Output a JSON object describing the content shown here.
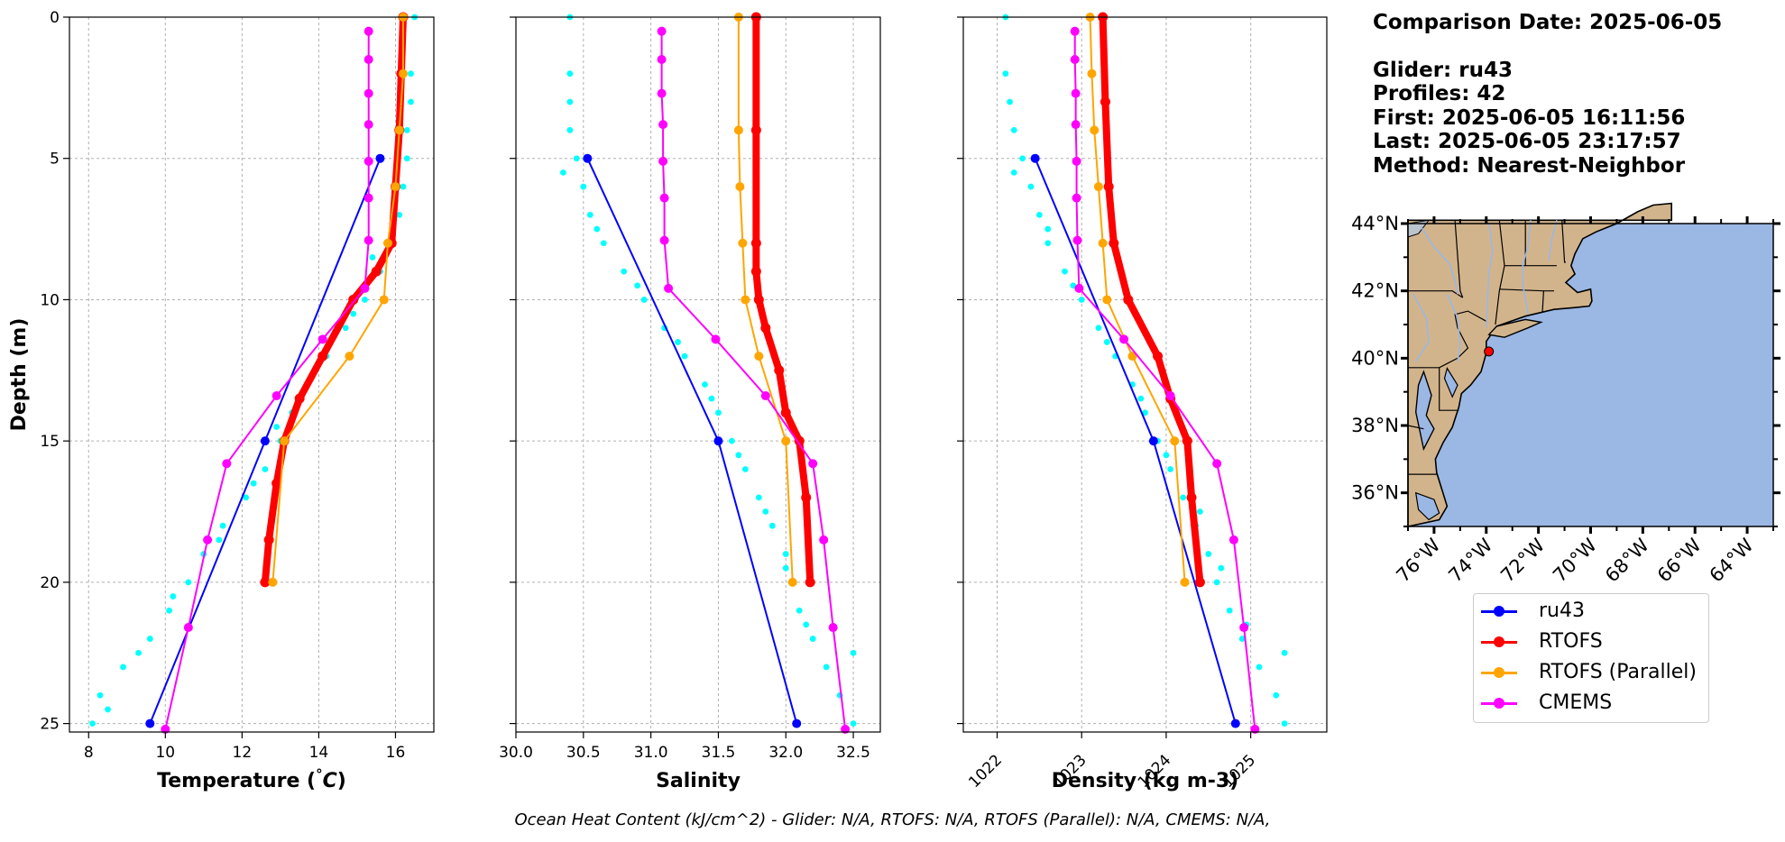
{
  "chart_data": [
    {
      "type": "line",
      "xlabel": "Temperature (°C)",
      "ylabel": "Depth (m)",
      "xlim": [
        7.5,
        17.0
      ],
      "ylim": [
        25.3,
        0
      ],
      "xticks": [
        8,
        10,
        12,
        14,
        16
      ],
      "yticks": [
        0,
        5,
        10,
        15,
        20,
        25
      ],
      "grid": true,
      "scatter": {
        "name": "",
        "color": "#00ffff",
        "points": [
          [
            16.5,
            0
          ],
          [
            16.4,
            2
          ],
          [
            16.4,
            3
          ],
          [
            16.3,
            4
          ],
          [
            16.3,
            5
          ],
          [
            16.2,
            6
          ],
          [
            16.1,
            7
          ],
          [
            15.9,
            8
          ],
          [
            15.6,
            9
          ],
          [
            15.2,
            10
          ],
          [
            14.7,
            11
          ],
          [
            14.2,
            12
          ],
          [
            13.7,
            13
          ],
          [
            13.3,
            14
          ],
          [
            13.0,
            15
          ],
          [
            12.6,
            16
          ],
          [
            12.1,
            17
          ],
          [
            11.5,
            18
          ],
          [
            11.0,
            19
          ],
          [
            10.6,
            20
          ],
          [
            10.1,
            21
          ],
          [
            9.6,
            22
          ],
          [
            8.9,
            23
          ],
          [
            8.3,
            24
          ],
          [
            8.1,
            25
          ],
          [
            16.0,
            6.5
          ],
          [
            15.4,
            8.5
          ],
          [
            14.9,
            10.5
          ],
          [
            13.9,
            12.5
          ],
          [
            12.9,
            14.5
          ],
          [
            12.3,
            16.5
          ],
          [
            11.4,
            18.5
          ],
          [
            10.2,
            20.5
          ],
          [
            9.3,
            22.5
          ],
          [
            8.5,
            24.5
          ]
        ]
      },
      "series": [
        {
          "name": "ru43",
          "color": "#0000ff",
          "x": [
            15.6,
            12.6,
            9.6
          ],
          "y": [
            5,
            15,
            25
          ]
        },
        {
          "name": "RTOFS",
          "color": "#ff0000",
          "x": [
            16.2,
            16.15,
            16.1,
            16.0,
            15.9,
            15.5,
            14.9,
            14.1,
            13.5,
            13.1,
            12.9,
            12.7,
            12.6
          ],
          "y": [
            0,
            2,
            4,
            6,
            8,
            9,
            10,
            12,
            13.5,
            15,
            16.5,
            18.5,
            20
          ]
        },
        {
          "name": "RTOFS (Parallel)",
          "color": "#ffa500",
          "x": [
            16.2,
            16.2,
            16.1,
            16.0,
            15.8,
            15.7,
            14.8,
            13.1,
            12.8
          ],
          "y": [
            0,
            2,
            4,
            6,
            8,
            10,
            12,
            15,
            20
          ]
        },
        {
          "name": "CMEMS",
          "color": "#ff00ff",
          "x": [
            15.3,
            15.3,
            15.3,
            15.3,
            15.3,
            15.3,
            15.3,
            15.2,
            14.1,
            12.9,
            11.6,
            11.1,
            10.6,
            10.0
          ],
          "y": [
            0.5,
            1.5,
            2.7,
            3.8,
            5.1,
            6.4,
            7.9,
            9.6,
            11.4,
            13.4,
            15.8,
            18.5,
            21.6,
            25.2
          ]
        }
      ]
    },
    {
      "type": "line",
      "xlabel": "Salinity",
      "ylabel": "",
      "xlim": [
        30.0,
        32.7
      ],
      "ylim": [
        25.3,
        0
      ],
      "xticks": [
        30.0,
        30.5,
        31.0,
        31.5,
        32.0,
        32.5
      ],
      "yticks": [
        0,
        5,
        10,
        15,
        20,
        25
      ],
      "grid": true,
      "scatter": {
        "name": "",
        "color": "#00ffff",
        "points": [
          [
            30.4,
            0
          ],
          [
            30.4,
            2
          ],
          [
            30.4,
            3
          ],
          [
            30.4,
            4
          ],
          [
            30.45,
            5
          ],
          [
            30.5,
            6
          ],
          [
            30.55,
            7
          ],
          [
            30.65,
            8
          ],
          [
            30.8,
            9
          ],
          [
            30.95,
            10
          ],
          [
            31.1,
            11
          ],
          [
            31.25,
            12
          ],
          [
            31.4,
            13
          ],
          [
            31.5,
            14
          ],
          [
            31.6,
            15
          ],
          [
            31.7,
            16
          ],
          [
            31.8,
            17
          ],
          [
            31.9,
            18
          ],
          [
            32.0,
            19
          ],
          [
            32.05,
            20
          ],
          [
            32.1,
            21
          ],
          [
            32.2,
            22
          ],
          [
            32.3,
            23
          ],
          [
            32.4,
            24
          ],
          [
            32.5,
            25
          ],
          [
            30.35,
            5.5
          ],
          [
            30.6,
            7.5
          ],
          [
            30.9,
            9.5
          ],
          [
            31.2,
            11.5
          ],
          [
            31.45,
            13.5
          ],
          [
            31.65,
            15.5
          ],
          [
            31.85,
            17.5
          ],
          [
            32.0,
            19.5
          ],
          [
            32.15,
            21.5
          ],
          [
            32.5,
            22.5
          ]
        ]
      },
      "series": [
        {
          "name": "ru43",
          "color": "#0000ff",
          "x": [
            30.53,
            31.5,
            32.08
          ],
          "y": [
            5,
            15,
            25
          ]
        },
        {
          "name": "RTOFS",
          "color": "#ff0000",
          "x": [
            31.78,
            31.78,
            31.78,
            31.78,
            31.8,
            31.85,
            31.95,
            32.0,
            32.1,
            32.15,
            32.18
          ],
          "y": [
            0,
            4,
            8,
            9,
            10,
            11,
            12.5,
            14,
            15,
            17,
            20
          ]
        },
        {
          "name": "RTOFS (Parallel)",
          "color": "#ffa500",
          "x": [
            31.65,
            31.65,
            31.66,
            31.68,
            31.7,
            31.8,
            32.0,
            32.05
          ],
          "y": [
            0,
            4,
            6,
            8,
            10,
            12,
            15,
            20
          ]
        },
        {
          "name": "CMEMS",
          "color": "#ff00ff",
          "x": [
            31.08,
            31.08,
            31.08,
            31.09,
            31.09,
            31.1,
            31.1,
            31.13,
            31.48,
            31.85,
            32.2,
            32.28,
            32.35,
            32.44
          ],
          "y": [
            0.5,
            1.5,
            2.7,
            3.8,
            5.1,
            6.4,
            7.9,
            9.6,
            11.4,
            13.4,
            15.8,
            18.5,
            21.6,
            25.2
          ]
        }
      ]
    },
    {
      "type": "line",
      "xlabel": "Density (kg m-3)",
      "ylabel": "",
      "xlim": [
        1021.6,
        1025.9
      ],
      "ylim": [
        25.3,
        0
      ],
      "xticks": [
        1022,
        1023,
        1024,
        1025
      ],
      "yticks": [
        0,
        5,
        10,
        15,
        20,
        25
      ],
      "grid": true,
      "scatter": {
        "name": "",
        "color": "#00ffff",
        "points": [
          [
            1022.1,
            0
          ],
          [
            1022.1,
            2
          ],
          [
            1022.15,
            3
          ],
          [
            1022.2,
            4
          ],
          [
            1022.3,
            5
          ],
          [
            1022.4,
            6
          ],
          [
            1022.5,
            7
          ],
          [
            1022.6,
            8
          ],
          [
            1022.8,
            9
          ],
          [
            1023.0,
            10
          ],
          [
            1023.2,
            11
          ],
          [
            1023.4,
            12
          ],
          [
            1023.6,
            13
          ],
          [
            1023.75,
            14
          ],
          [
            1023.9,
            15
          ],
          [
            1024.05,
            16
          ],
          [
            1024.2,
            17
          ],
          [
            1024.35,
            18
          ],
          [
            1024.5,
            19
          ],
          [
            1024.6,
            20
          ],
          [
            1024.75,
            21
          ],
          [
            1024.9,
            22
          ],
          [
            1025.1,
            23
          ],
          [
            1025.3,
            24
          ],
          [
            1025.4,
            25
          ],
          [
            1022.2,
            5.5
          ],
          [
            1022.6,
            7.5
          ],
          [
            1022.9,
            9.5
          ],
          [
            1023.3,
            11.5
          ],
          [
            1023.7,
            13.5
          ],
          [
            1024.0,
            15.5
          ],
          [
            1024.4,
            17.5
          ],
          [
            1024.65,
            19.5
          ],
          [
            1024.95,
            21.5
          ],
          [
            1025.4,
            22.5
          ]
        ]
      },
      "series": [
        {
          "name": "ru43",
          "color": "#0000ff",
          "x": [
            1022.45,
            1023.85,
            1024.82
          ],
          "y": [
            5,
            15,
            25
          ]
        },
        {
          "name": "RTOFS",
          "color": "#ff0000",
          "x": [
            1023.25,
            1023.28,
            1023.32,
            1023.38,
            1023.55,
            1023.9,
            1024.05,
            1024.25,
            1024.3,
            1024.4
          ],
          "y": [
            0,
            3,
            6,
            8,
            10,
            12,
            13.5,
            15,
            17,
            20
          ]
        },
        {
          "name": "RTOFS (Parallel)",
          "color": "#ffa500",
          "x": [
            1023.1,
            1023.12,
            1023.15,
            1023.2,
            1023.25,
            1023.3,
            1023.6,
            1024.1,
            1024.22
          ],
          "y": [
            0,
            2,
            4,
            6,
            8,
            10,
            12,
            15,
            20
          ]
        },
        {
          "name": "CMEMS",
          "color": "#ff00ff",
          "x": [
            1022.92,
            1022.92,
            1022.93,
            1022.93,
            1022.94,
            1022.94,
            1022.95,
            1022.97,
            1023.5,
            1024.05,
            1024.6,
            1024.8,
            1024.92,
            1025.05
          ],
          "y": [
            0.5,
            1.5,
            2.7,
            3.8,
            5.1,
            6.4,
            7.9,
            9.6,
            11.4,
            13.4,
            15.8,
            18.5,
            21.6,
            25.2
          ]
        }
      ]
    }
  ],
  "map": {
    "lat_ticks": [
      "36°N",
      "38°N",
      "40°N",
      "42°N",
      "44°N"
    ],
    "lon_ticks": [
      "76°W",
      "74°W",
      "72°W",
      "70°W",
      "68°W",
      "66°W",
      "64°W"
    ],
    "land_color": "#d2b48c",
    "ocean_color": "#9bb7e4",
    "marker_color": "#ff0000"
  },
  "info": {
    "date_line": "Comparison Date: 2025-06-05",
    "glider_line": "Glider: ru43",
    "profiles_line": "Profiles: 42",
    "first_line": "First: 2025-06-05 16:11:56",
    "last_line": "Last: 2025-06-05 23:17:57",
    "method_line": "Method: Nearest-Neighbor"
  },
  "legend": [
    {
      "label": "ru43",
      "color": "#0000ff"
    },
    {
      "label": "RTOFS",
      "color": "#ff0000"
    },
    {
      "label": "RTOFS (Parallel)",
      "color": "#ffa500"
    },
    {
      "label": "CMEMS",
      "color": "#ff00ff"
    }
  ],
  "footer": "Ocean Heat Content (kJ/cm^2) - Glider: N/A,  RTOFS: N/A,  RTOFS (Parallel): N/A,  CMEMS: N/A,"
}
